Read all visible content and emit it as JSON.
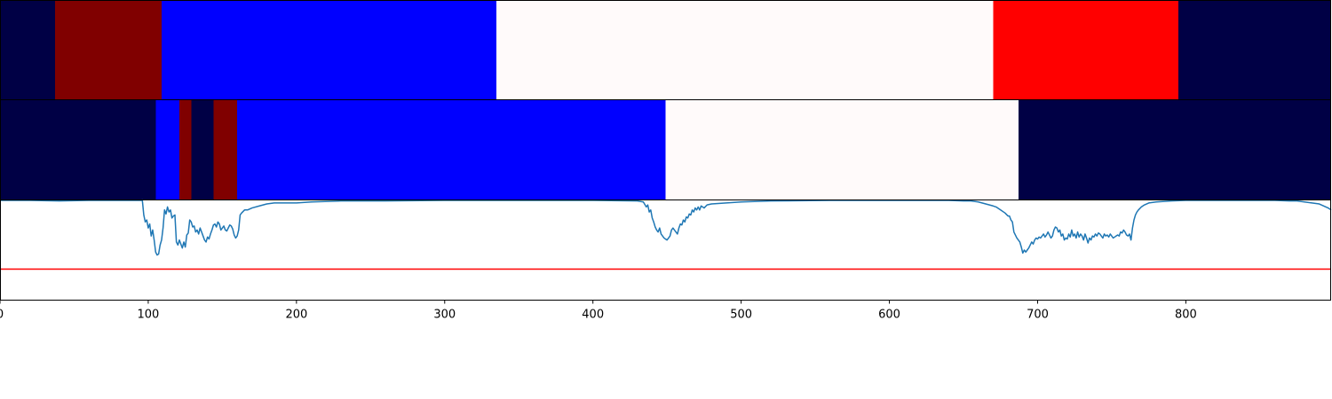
{
  "chart_data": [
    {
      "type": "heatmap",
      "xlim": [
        0,
        898
      ],
      "segments": [
        {
          "start": 0,
          "end": 37,
          "color": "#000045"
        },
        {
          "start": 37,
          "end": 109,
          "color": "#800000"
        },
        {
          "start": 109,
          "end": 335,
          "color": "#0000ff"
        },
        {
          "start": 335,
          "end": 670,
          "color": "#fffafa"
        },
        {
          "start": 670,
          "end": 795,
          "color": "#ff0000"
        },
        {
          "start": 795,
          "end": 898,
          "color": "#000045"
        }
      ]
    },
    {
      "type": "heatmap",
      "xlim": [
        0,
        898
      ],
      "segments": [
        {
          "start": 0,
          "end": 105,
          "color": "#000045"
        },
        {
          "start": 105,
          "end": 121,
          "color": "#0000ff"
        },
        {
          "start": 121,
          "end": 129,
          "color": "#800000"
        },
        {
          "start": 129,
          "end": 144,
          "color": "#000045"
        },
        {
          "start": 144,
          "end": 160,
          "color": "#800000"
        },
        {
          "start": 160,
          "end": 449,
          "color": "#0000ff"
        },
        {
          "start": 449,
          "end": 687,
          "color": "#fffafa"
        },
        {
          "start": 687,
          "end": 898,
          "color": "#000045"
        }
      ]
    },
    {
      "type": "line",
      "xlim": [
        0,
        898
      ],
      "ylim": [
        0,
        1
      ],
      "xticks": [
        0,
        100,
        200,
        300,
        400,
        500,
        600,
        700,
        800
      ],
      "xtick_labels": [
        "0",
        "100",
        "200",
        "300",
        "400",
        "500",
        "600",
        "700",
        "800"
      ],
      "threshold": {
        "value": 0.31,
        "color": "#ff0000"
      },
      "series": [
        {
          "color": "#1f77b4",
          "points": [
            [
              0,
              0.995
            ],
            [
              20,
              0.995
            ],
            [
              40,
              0.99
            ],
            [
              60,
              0.995
            ],
            [
              80,
              0.995
            ],
            [
              95,
              0.995
            ],
            [
              96,
              1.0
            ],
            [
              97,
              0.85
            ],
            [
              98,
              0.78
            ],
            [
              99,
              0.8
            ],
            [
              100,
              0.72
            ],
            [
              101,
              0.76
            ],
            [
              102,
              0.64
            ],
            [
              103,
              0.7
            ],
            [
              104,
              0.6
            ],
            [
              105,
              0.48
            ],
            [
              106,
              0.45
            ],
            [
              107,
              0.46
            ],
            [
              108,
              0.55
            ],
            [
              109,
              0.6
            ],
            [
              110,
              0.72
            ],
            [
              111,
              0.9
            ],
            [
              112,
              0.86
            ],
            [
              113,
              0.93
            ],
            [
              114,
              0.88
            ],
            [
              115,
              0.9
            ],
            [
              116,
              0.82
            ],
            [
              117,
              0.84
            ],
            [
              118,
              0.85
            ],
            [
              119,
              0.58
            ],
            [
              120,
              0.55
            ],
            [
              121,
              0.6
            ],
            [
              122,
              0.56
            ],
            [
              123,
              0.52
            ],
            [
              124,
              0.58
            ],
            [
              125,
              0.53
            ],
            [
              126,
              0.65
            ],
            [
              127,
              0.67
            ],
            [
              128,
              0.8
            ],
            [
              129,
              0.78
            ],
            [
              130,
              0.73
            ],
            [
              131,
              0.74
            ],
            [
              132,
              0.68
            ],
            [
              133,
              0.7
            ],
            [
              134,
              0.66
            ],
            [
              135,
              0.72
            ],
            [
              136,
              0.68
            ],
            [
              137,
              0.64
            ],
            [
              138,
              0.6
            ],
            [
              139,
              0.58
            ],
            [
              140,
              0.63
            ],
            [
              141,
              0.61
            ],
            [
              142,
              0.66
            ],
            [
              143,
              0.7
            ],
            [
              144,
              0.75
            ],
            [
              145,
              0.76
            ],
            [
              146,
              0.73
            ],
            [
              147,
              0.78
            ],
            [
              148,
              0.76
            ],
            [
              149,
              0.7
            ],
            [
              150,
              0.72
            ],
            [
              151,
              0.74
            ],
            [
              152,
              0.7
            ],
            [
              153,
              0.69
            ],
            [
              154,
              0.72
            ],
            [
              155,
              0.75
            ],
            [
              156,
              0.74
            ],
            [
              157,
              0.71
            ],
            [
              158,
              0.65
            ],
            [
              159,
              0.62
            ],
            [
              160,
              0.64
            ],
            [
              161,
              0.7
            ],
            [
              162,
              0.85
            ],
            [
              163,
              0.87
            ],
            [
              165,
              0.9
            ],
            [
              167,
              0.9
            ],
            [
              170,
              0.92
            ],
            [
              175,
              0.94
            ],
            [
              180,
              0.96
            ],
            [
              185,
              0.97
            ],
            [
              190,
              0.97
            ],
            [
              200,
              0.97
            ],
            [
              210,
              0.98
            ],
            [
              230,
              0.99
            ],
            [
              260,
              0.99
            ],
            [
              300,
              0.995
            ],
            [
              350,
              0.995
            ],
            [
              400,
              0.995
            ],
            [
              430,
              0.99
            ],
            [
              434,
              0.98
            ],
            [
              436,
              0.93
            ],
            [
              437,
              0.95
            ],
            [
              438,
              0.88
            ],
            [
              439,
              0.9
            ],
            [
              440,
              0.82
            ],
            [
              441,
              0.78
            ],
            [
              442,
              0.73
            ],
            [
              443,
              0.7
            ],
            [
              444,
              0.68
            ],
            [
              445,
              0.72
            ],
            [
              446,
              0.66
            ],
            [
              447,
              0.64
            ],
            [
              448,
              0.62
            ],
            [
              449,
              0.61
            ],
            [
              450,
              0.6
            ],
            [
              451,
              0.62
            ],
            [
              452,
              0.64
            ],
            [
              453,
              0.7
            ],
            [
              454,
              0.72
            ],
            [
              455,
              0.7
            ],
            [
              456,
              0.68
            ],
            [
              457,
              0.66
            ],
            [
              458,
              0.72
            ],
            [
              459,
              0.76
            ],
            [
              460,
              0.75
            ],
            [
              461,
              0.8
            ],
            [
              462,
              0.78
            ],
            [
              463,
              0.83
            ],
            [
              464,
              0.82
            ],
            [
              465,
              0.86
            ],
            [
              466,
              0.85
            ],
            [
              467,
              0.9
            ],
            [
              468,
              0.88
            ],
            [
              469,
              0.92
            ],
            [
              470,
              0.9
            ],
            [
              471,
              0.93
            ],
            [
              472,
              0.9
            ],
            [
              473,
              0.94
            ],
            [
              475,
              0.92
            ],
            [
              477,
              0.95
            ],
            [
              480,
              0.96
            ],
            [
              490,
              0.97
            ],
            [
              500,
              0.98
            ],
            [
              520,
              0.99
            ],
            [
              560,
              0.995
            ],
            [
              600,
              0.995
            ],
            [
              640,
              0.995
            ],
            [
              650,
              0.99
            ],
            [
              655,
              0.99
            ],
            [
              660,
              0.98
            ],
            [
              665,
              0.96
            ],
            [
              670,
              0.94
            ],
            [
              672,
              0.93
            ],
            [
              675,
              0.9
            ],
            [
              678,
              0.87
            ],
            [
              680,
              0.84
            ],
            [
              681,
              0.84
            ],
            [
              682,
              0.8
            ],
            [
              683,
              0.78
            ],
            [
              684,
              0.68
            ],
            [
              685,
              0.65
            ],
            [
              686,
              0.62
            ],
            [
              687,
              0.6
            ],
            [
              688,
              0.58
            ],
            [
              689,
              0.53
            ],
            [
              690,
              0.47
            ],
            [
              691,
              0.5
            ],
            [
              692,
              0.48
            ],
            [
              693,
              0.5
            ],
            [
              694,
              0.52
            ],
            [
              695,
              0.55
            ],
            [
              696,
              0.58
            ],
            [
              697,
              0.56
            ],
            [
              698,
              0.6
            ],
            [
              699,
              0.62
            ],
            [
              700,
              0.61
            ],
            [
              701,
              0.63
            ],
            [
              702,
              0.62
            ],
            [
              703,
              0.64
            ],
            [
              704,
              0.66
            ],
            [
              705,
              0.63
            ],
            [
              706,
              0.65
            ],
            [
              707,
              0.68
            ],
            [
              708,
              0.65
            ],
            [
              709,
              0.62
            ],
            [
              710,
              0.64
            ],
            [
              711,
              0.7
            ],
            [
              712,
              0.73
            ],
            [
              713,
              0.72
            ],
            [
              714,
              0.68
            ],
            [
              715,
              0.7
            ],
            [
              716,
              0.64
            ],
            [
              717,
              0.66
            ],
            [
              718,
              0.6
            ],
            [
              719,
              0.62
            ],
            [
              720,
              0.61
            ],
            [
              721,
              0.66
            ],
            [
              722,
              0.63
            ],
            [
              723,
              0.7
            ],
            [
              724,
              0.64
            ],
            [
              725,
              0.66
            ],
            [
              726,
              0.62
            ],
            [
              727,
              0.68
            ],
            [
              728,
              0.63
            ],
            [
              729,
              0.66
            ],
            [
              730,
              0.64
            ],
            [
              731,
              0.6
            ],
            [
              732,
              0.66
            ],
            [
              733,
              0.62
            ],
            [
              734,
              0.57
            ],
            [
              735,
              0.62
            ],
            [
              736,
              0.6
            ],
            [
              737,
              0.64
            ],
            [
              738,
              0.63
            ],
            [
              739,
              0.66
            ],
            [
              740,
              0.64
            ],
            [
              741,
              0.67
            ],
            [
              742,
              0.66
            ],
            [
              743,
              0.64
            ],
            [
              744,
              0.62
            ],
            [
              745,
              0.66
            ],
            [
              746,
              0.64
            ],
            [
              747,
              0.65
            ],
            [
              748,
              0.63
            ],
            [
              749,
              0.66
            ],
            [
              750,
              0.64
            ],
            [
              751,
              0.62
            ],
            [
              752,
              0.63
            ],
            [
              753,
              0.64
            ],
            [
              754,
              0.65
            ],
            [
              755,
              0.64
            ],
            [
              756,
              0.68
            ],
            [
              757,
              0.67
            ],
            [
              758,
              0.7
            ],
            [
              759,
              0.68
            ],
            [
              760,
              0.65
            ],
            [
              761,
              0.64
            ],
            [
              762,
              0.66
            ],
            [
              763,
              0.6
            ],
            [
              764,
              0.72
            ],
            [
              765,
              0.8
            ],
            [
              766,
              0.85
            ],
            [
              767,
              0.88
            ],
            [
              768,
              0.9
            ],
            [
              770,
              0.93
            ],
            [
              772,
              0.95
            ],
            [
              775,
              0.97
            ],
            [
              780,
              0.98
            ],
            [
              790,
              0.99
            ],
            [
              800,
              0.995
            ],
            [
              830,
              0.995
            ],
            [
              860,
              0.995
            ],
            [
              870,
              0.99
            ],
            [
              875,
              0.99
            ],
            [
              880,
              0.98
            ],
            [
              885,
              0.97
            ],
            [
              890,
              0.96
            ],
            [
              893,
              0.94
            ],
            [
              896,
              0.92
            ],
            [
              898,
              0.9
            ]
          ]
        }
      ]
    }
  ]
}
